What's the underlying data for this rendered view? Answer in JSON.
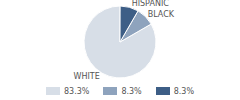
{
  "chart_data": {
    "type": "pie",
    "categories": [
      "WHITE",
      "BLACK",
      "HISPANIC"
    ],
    "values": [
      83.3,
      8.3,
      8.3
    ],
    "value_labels": [
      "83.3%",
      "8.3%",
      "8.3%"
    ],
    "colors": [
      "#d7dee7",
      "#8ea3bd",
      "#3d5e86"
    ]
  }
}
